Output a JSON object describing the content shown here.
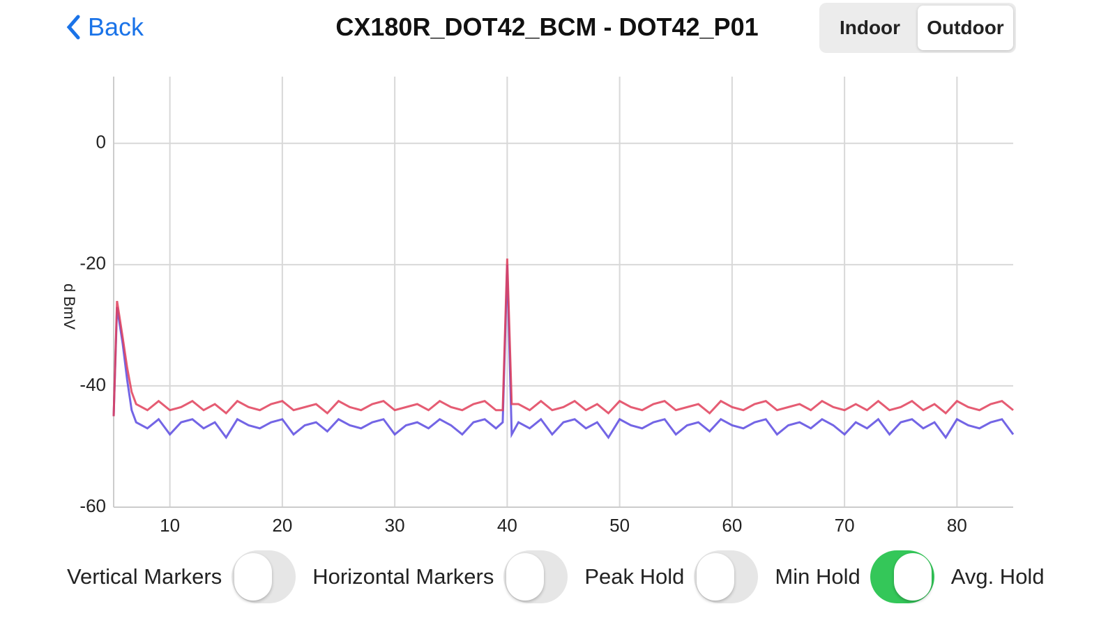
{
  "header": {
    "back": "Back",
    "title": "CX180R_DOT42_BCM - DOT42_P01",
    "segments": [
      {
        "label": "Indoor",
        "selected": false
      },
      {
        "label": "Outdoor",
        "selected": true
      }
    ]
  },
  "chart_data": {
    "type": "line",
    "ylabel": "d BmV",
    "x": [
      5,
      5.3,
      5.8,
      6.2,
      6.6,
      7,
      8,
      9,
      10,
      11,
      12,
      13,
      14,
      15,
      16,
      17,
      18,
      19,
      20,
      21,
      22,
      23,
      24,
      25,
      26,
      27,
      28,
      29,
      30,
      31,
      32,
      33,
      34,
      35,
      36,
      37,
      38,
      39,
      39.6,
      40,
      40.4,
      41,
      42,
      43,
      44,
      45,
      46,
      47,
      48,
      49,
      50,
      51,
      52,
      53,
      54,
      55,
      56,
      57,
      58,
      59,
      60,
      61,
      62,
      63,
      64,
      65,
      66,
      67,
      68,
      69,
      70,
      71,
      72,
      73,
      74,
      75,
      76,
      77,
      78,
      79,
      80,
      81,
      82,
      83,
      84,
      85
    ],
    "series": [
      {
        "color": "#e0405a",
        "values": [
          -45,
          -26,
          -32,
          -37,
          -41,
          -43,
          -44,
          -42.5,
          -44,
          -43.5,
          -42.5,
          -44,
          -43,
          -44.5,
          -42.5,
          -43.5,
          -44,
          -43,
          -42.5,
          -44,
          -43.5,
          -43,
          -44.5,
          -42.5,
          -43.5,
          -44,
          -43,
          -42.5,
          -44,
          -43.5,
          -43,
          -44,
          -42.5,
          -43.5,
          -44,
          -43,
          -42.5,
          -44,
          -44,
          -19,
          -43,
          -43,
          -44,
          -42.5,
          -44,
          -43.5,
          -42.5,
          -44,
          -43,
          -44.5,
          -42.5,
          -43.5,
          -44,
          -43,
          -42.5,
          -44,
          -43.5,
          -43,
          -44.5,
          -42.5,
          -43.5,
          -44,
          -43,
          -42.5,
          -44,
          -43.5,
          -43,
          -44,
          -42.5,
          -43.5,
          -44,
          -43,
          -44,
          -42.5,
          -44,
          -43.5,
          -42.5,
          -44,
          -43,
          -44.5,
          -42.5,
          -43.5,
          -44,
          -43,
          -42.5,
          -44
        ]
      },
      {
        "color": "#5a4ae0",
        "values": [
          -45,
          -27,
          -33,
          -39,
          -44,
          -46,
          -47,
          -45.5,
          -48,
          -46,
          -45.5,
          -47,
          -46,
          -48.5,
          -45.5,
          -46.5,
          -47,
          -46,
          -45.5,
          -48,
          -46.5,
          -46,
          -47.5,
          -45.5,
          -46.5,
          -47,
          -46,
          -45.5,
          -48,
          -46.5,
          -46,
          -47,
          -45.5,
          -46.5,
          -48,
          -46,
          -45.5,
          -47,
          -46,
          -20,
          -48,
          -46,
          -47,
          -45.5,
          -48,
          -46,
          -45.5,
          -47,
          -46,
          -48.5,
          -45.5,
          -46.5,
          -47,
          -46,
          -45.5,
          -48,
          -46.5,
          -46,
          -47.5,
          -45.5,
          -46.5,
          -47,
          -46,
          -45.5,
          -48,
          -46.5,
          -46,
          -47,
          -45.5,
          -46.5,
          -48,
          -46,
          -47,
          -45.5,
          -48,
          -46,
          -45.5,
          -47,
          -46,
          -48.5,
          -45.5,
          -46.5,
          -47,
          -46,
          -45.5,
          -48
        ]
      }
    ],
    "xlim": [
      5,
      85
    ],
    "xticks": [
      10,
      20,
      30,
      40,
      50,
      60,
      70,
      80
    ],
    "ylim": [
      -60,
      11
    ],
    "yticks": [
      0,
      -20,
      -40,
      -60
    ],
    "grid": true
  },
  "toggles": [
    {
      "label": "Vertical Markers",
      "on": false
    },
    {
      "label": "Horizontal Markers",
      "on": false
    },
    {
      "label": "Peak Hold",
      "on": false
    },
    {
      "label": "Min Hold",
      "on": true
    },
    {
      "label": "Avg. Hold",
      "on": false
    }
  ]
}
